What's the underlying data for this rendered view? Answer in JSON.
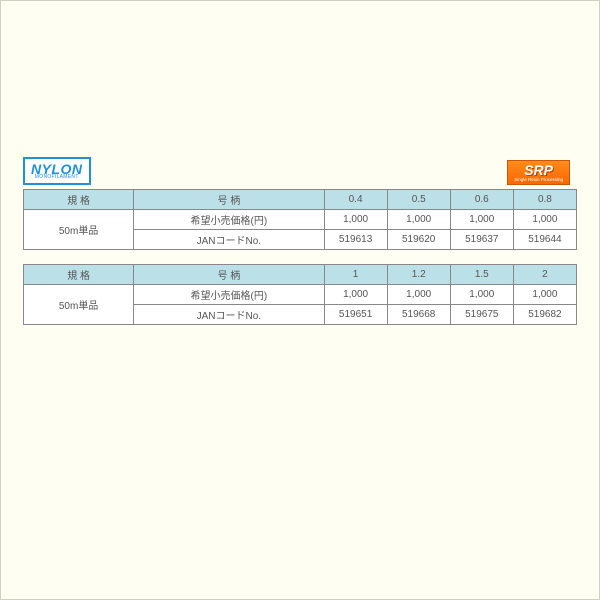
{
  "colors": {
    "page_bg": "#fffef2",
    "header_bg": "#bce0e8",
    "cell_bg": "#ffffff",
    "border": "#888888",
    "nylon_blue": "#2090d8",
    "srp_orange": "#ff7700",
    "text": "#555555"
  },
  "badges": {
    "nylon": {
      "main": "NYLON",
      "sub": "MONOFILAMENT"
    },
    "srp": {
      "main": "SRP",
      "sub": "Single Resin Processing"
    }
  },
  "table1": {
    "type": "table",
    "header_spec": "規 格",
    "header_attr": "号 柄",
    "col_headers": [
      "0.4",
      "0.5",
      "0.6",
      "0.8"
    ],
    "row_span_label": "50m単品",
    "rows": [
      {
        "label": "希望小売価格(円)",
        "cells": [
          "1,000",
          "1,000",
          "1,000",
          "1,000"
        ]
      },
      {
        "label": "JANコードNo.",
        "cells": [
          "519613",
          "519620",
          "519637",
          "519644"
        ]
      }
    ]
  },
  "table2": {
    "type": "table",
    "header_spec": "規 格",
    "header_attr": "号 柄",
    "col_headers": [
      "1",
      "1.2",
      "1.5",
      "2"
    ],
    "row_span_label": "50m単品",
    "rows": [
      {
        "label": "希望小売価格(円)",
        "cells": [
          "1,000",
          "1,000",
          "1,000",
          "1,000"
        ]
      },
      {
        "label": "JANコードNo.",
        "cells": [
          "519651",
          "519668",
          "519675",
          "519682"
        ]
      }
    ]
  }
}
